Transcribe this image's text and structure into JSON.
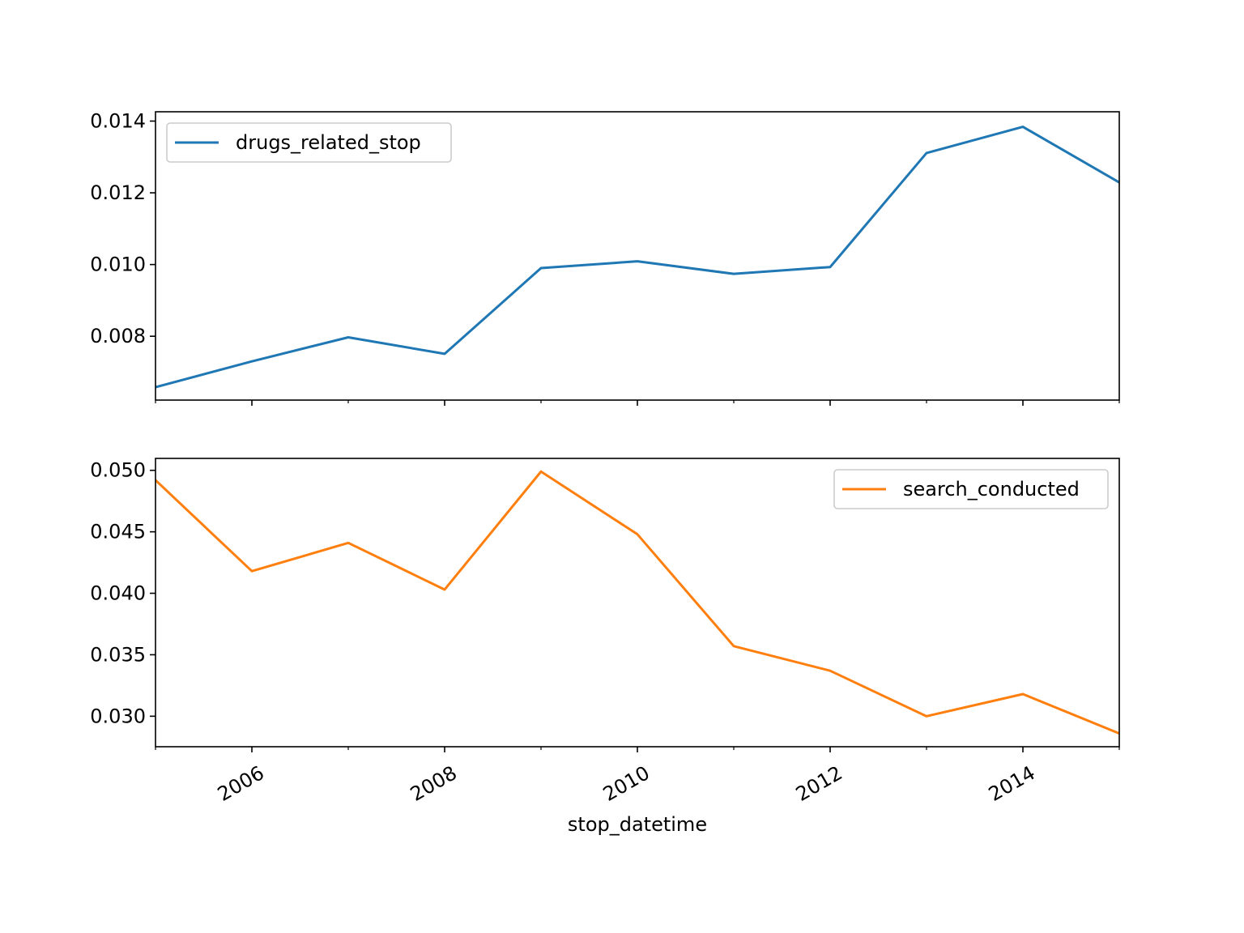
{
  "chart_data": {
    "type": "line",
    "x": [
      2005,
      2006,
      2007,
      2008,
      2009,
      2010,
      2011,
      2012,
      2013,
      2014,
      2015
    ],
    "xlabel": "stop_datetime",
    "xlim": [
      2005,
      2015
    ],
    "x_ticks": [
      2006,
      2008,
      2010,
      2012,
      2014
    ],
    "x_tick_labels": [
      "2006",
      "2008",
      "2010",
      "2012",
      "2014"
    ],
    "x_minor_ticks": [
      2005,
      2007,
      2009,
      2011,
      2013,
      2015
    ],
    "shared_x": true,
    "panels": [
      {
        "series": [
          {
            "name": "drugs_related_stop",
            "color": "#1f77b4",
            "values": [
              0.00658,
              0.0073,
              0.00797,
              0.00751,
              0.0099,
              0.01009,
              0.00974,
              0.00993,
              0.01311,
              0.01384,
              0.01229
            ]
          }
        ],
        "ylim": [
          0.00622,
          0.01426
        ],
        "y_ticks": [
          0.008,
          0.01,
          0.012,
          0.014
        ],
        "y_tick_labels": [
          "0.008",
          "0.010",
          "0.012",
          "0.014"
        ],
        "legend_position": "upper left",
        "show_x_tick_labels": false
      },
      {
        "series": [
          {
            "name": "search_conducted",
            "color": "#ff7f0e",
            "values": [
              0.0492,
              0.0418,
              0.0441,
              0.0403,
              0.0499,
              0.0448,
              0.0357,
              0.0337,
              0.03,
              0.0318,
              0.0286
            ]
          }
        ],
        "ylim": [
          0.02752,
          0.05097
        ],
        "y_ticks": [
          0.03,
          0.035,
          0.04,
          0.045,
          0.05
        ],
        "y_tick_labels": [
          "0.030",
          "0.035",
          "0.040",
          "0.045",
          "0.050"
        ],
        "legend_position": "upper right",
        "show_x_tick_labels": true
      }
    ],
    "grid": false
  }
}
